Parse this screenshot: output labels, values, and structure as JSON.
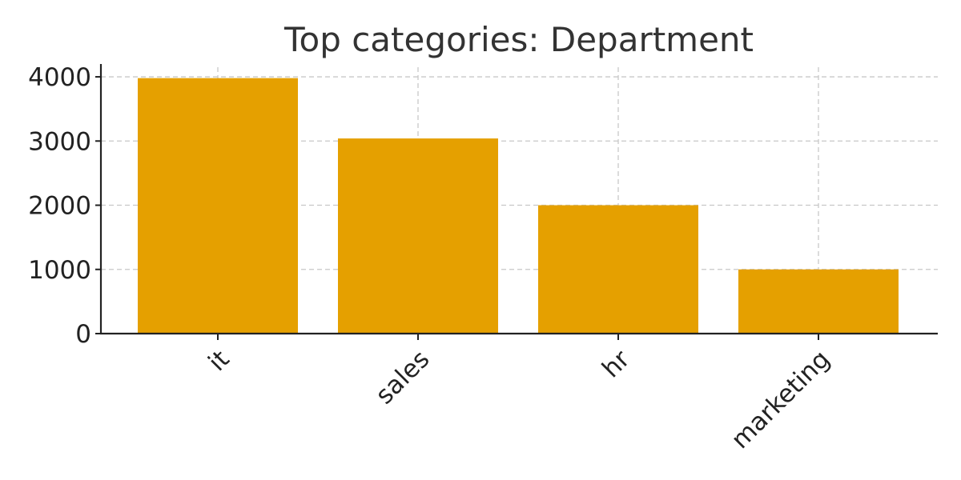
{
  "chart_data": {
    "type": "bar",
    "title": "Top categories: Department",
    "xlabel": "",
    "ylabel": "",
    "categories": [
      "it",
      "sales",
      "hr",
      "marketing"
    ],
    "values": [
      3980,
      3040,
      2000,
      1000
    ],
    "ylim": [
      0,
      4200
    ],
    "yticks": [
      0,
      1000,
      2000,
      3000,
      4000
    ],
    "ytick_labels": [
      "0",
      "1000",
      "2000",
      "3000",
      "4000"
    ],
    "bar_color": "#E5A000",
    "grid": true,
    "legend": "none"
  }
}
